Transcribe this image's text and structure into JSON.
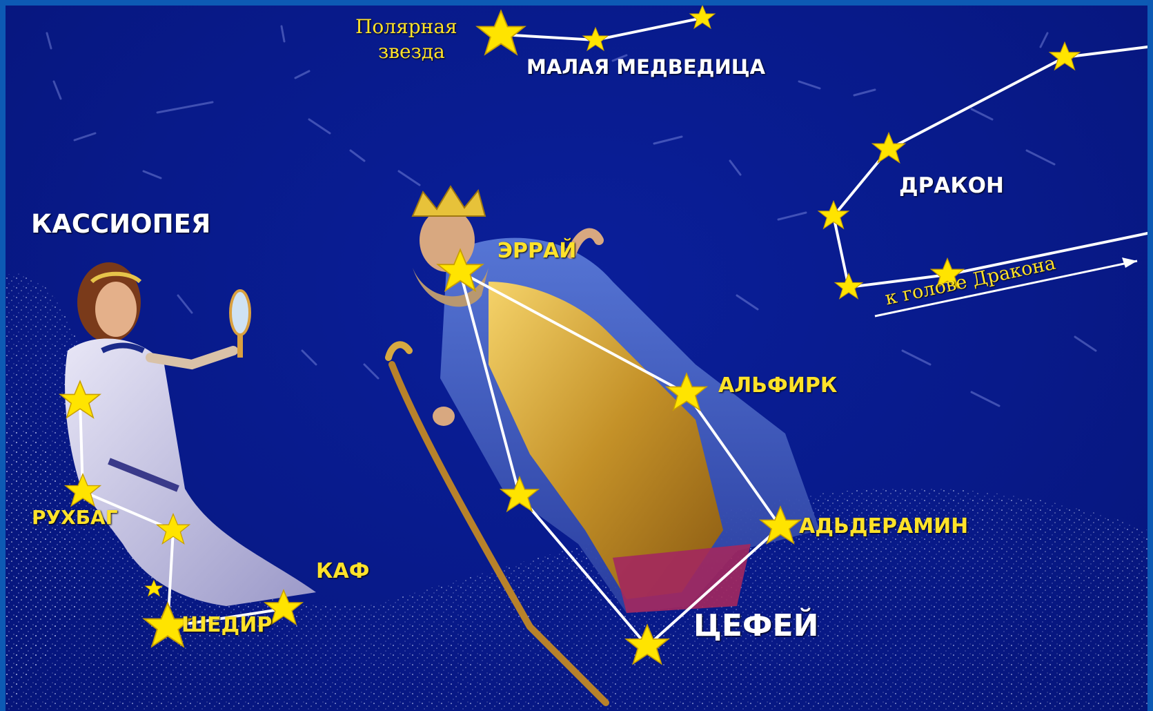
{
  "title_partial": "",
  "colors": {
    "sky": "#081a8a",
    "star": "#ffe400",
    "line": "#ffffff",
    "frame": "#0d5ab4"
  },
  "constellations": {
    "ursa_minor": {
      "name": "МАЛАЯ МЕДВЕДИЦА"
    },
    "draco": {
      "name": "ДРАКОН",
      "note": "к голове Дракона"
    },
    "cassiopeia": {
      "name": "КАССИОПЕЯ"
    },
    "cepheus": {
      "name": "ЦЕФЕЙ"
    }
  },
  "stars": {
    "polaris_line1": "Полярная",
    "polaris_line2": "звезда",
    "errai": "ЭРРАЙ",
    "alfirk": "АЛЬФИРК",
    "alderamin": "АДЬДЕРАМИН",
    "ruchbah": "РУХБАГ",
    "caph": "КАФ",
    "schedar": "ШЕДИР"
  }
}
